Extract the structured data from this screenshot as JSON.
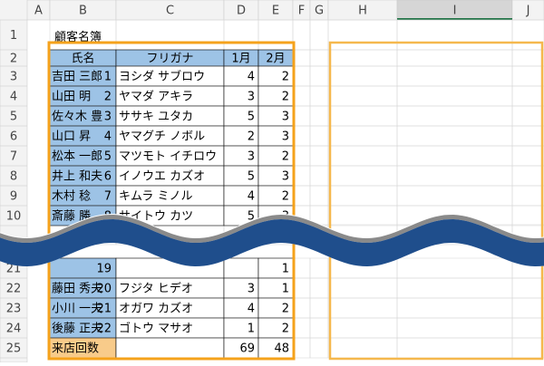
{
  "column_headers": [
    "A",
    "B",
    "C",
    "D",
    "E",
    "F",
    "G",
    "H",
    "I",
    "J"
  ],
  "title_row": {
    "row": "1",
    "title": "顧客名簿"
  },
  "header_row": {
    "row": "2",
    "cells": [
      "氏名",
      "フリガナ",
      "1月",
      "2月"
    ]
  },
  "records": [
    {
      "row": "3",
      "no": 1,
      "name": "吉田 三郎",
      "kana": "ヨシダ サブロウ",
      "m1": 4,
      "m2": 2
    },
    {
      "row": "4",
      "no": 2,
      "name": "山田 明",
      "kana": "ヤマダ アキラ",
      "m1": 3,
      "m2": 2
    },
    {
      "row": "5",
      "no": 3,
      "name": "佐々木 豊",
      "kana": "ササキ ユタカ",
      "m1": 5,
      "m2": 3
    },
    {
      "row": "6",
      "no": 4,
      "name": "山口 昇",
      "kana": "ヤマグチ ノボル",
      "m1": 2,
      "m2": 3
    },
    {
      "row": "7",
      "no": 5,
      "name": "松本 一郎",
      "kana": "マツモト イチロウ",
      "m1": 3,
      "m2": 2
    },
    {
      "row": "8",
      "no": 6,
      "name": "井上 和夫",
      "kana": "イノウエ カズオ",
      "m1": 5,
      "m2": 3
    },
    {
      "row": "9",
      "no": 7,
      "name": "木村 稔",
      "kana": "キムラ ミノル",
      "m1": 4,
      "m2": 2
    },
    {
      "row": "10",
      "no": 8,
      "name": "斎藤 勝",
      "kana": "サイトウ カツ",
      "m1": 5,
      "m2": 3
    },
    {
      "row": "21",
      "no": 19,
      "m2": 1
    },
    {
      "row": "22",
      "no": 20,
      "name": "藤田 秀夫",
      "kana": "フジタ ヒデオ",
      "m1": 3,
      "m2": 1
    },
    {
      "row": "23",
      "no": 21,
      "name": "小川 一夫",
      "kana": "オガワ カズオ",
      "m1": 4,
      "m2": 2
    },
    {
      "row": "24",
      "no": 22,
      "name": "後藤 正夫",
      "kana": "ゴトウ マサオ",
      "m1": 1,
      "m2": 2
    }
  ],
  "total_row": {
    "row": "25",
    "label": "来店回数",
    "m1": 69,
    "m2": 48
  }
}
